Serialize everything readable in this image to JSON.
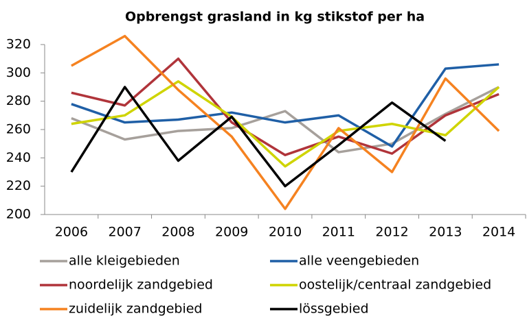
{
  "chart_data": {
    "type": "line",
    "title": "Opbrengst grasland in kg stikstof per ha",
    "categories": [
      "2006",
      "2007",
      "2008",
      "2009",
      "2010",
      "2011",
      "2012",
      "2013",
      "2014"
    ],
    "ylim": [
      200,
      320
    ],
    "yticks": [
      200,
      220,
      240,
      260,
      280,
      300,
      320
    ],
    "grid": false,
    "legend": "bottom",
    "series": [
      {
        "name": "alle kleigebieden",
        "color": "#a6a09b",
        "values": [
          268,
          253,
          259,
          261,
          273,
          244,
          250,
          271,
          290
        ]
      },
      {
        "name": "alle veengebieden",
        "color": "#1f5fa6",
        "values": [
          278,
          265,
          267,
          272,
          265,
          270,
          248,
          303,
          306
        ]
      },
      {
        "name": "noordelijk zandgebied",
        "color": "#b0343a",
        "values": [
          286,
          277,
          310,
          265,
          242,
          255,
          243,
          270,
          285
        ]
      },
      {
        "name": "oostelijk/centraal zandgebied",
        "color": "#cfd400",
        "values": [
          264,
          270,
          294,
          269,
          234,
          259,
          264,
          256,
          290
        ]
      },
      {
        "name": "zuidelijk zandgebied",
        "color": "#f58220",
        "values": [
          305,
          326,
          288,
          255,
          204,
          261,
          230,
          296,
          259
        ]
      },
      {
        "name": "lössgebied",
        "color": "#000000",
        "values": [
          230,
          290,
          238,
          269,
          220,
          249,
          279,
          252,
          null
        ]
      }
    ]
  }
}
